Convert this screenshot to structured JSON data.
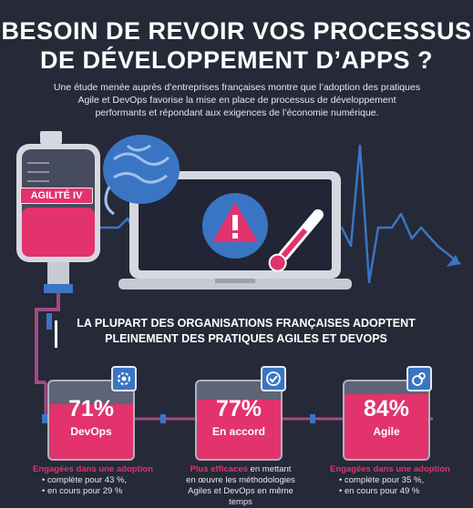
{
  "title_line1": "BESOIN DE REVOIR VOS PROCESSUS",
  "title_line2": "DE DÉVELOPPEMENT D’APPS ?",
  "intro_line1": "Une étude menée auprès d’entreprises françaises montre que l’adoption des pratiques",
  "intro_line2": "Agile et DevOps favorise la mise en place de processus de développement",
  "intro_line3": "performants et répondant aux exigences de l’économie numérique.",
  "iv_label": "AGILITÉ IV",
  "heading_line1": "LA PLUPART DES ORGANISATIONS FRANÇAISES ADOPTENT",
  "heading_line2": "PLEINEMENT DES PRATIQUES AGILES ET DEVOPS",
  "colors": {
    "background": "#262937",
    "accent_pink": "#e2336d",
    "accent_blue": "#3a75c4",
    "gray": "#5e6376"
  },
  "stats": [
    {
      "value": 71,
      "percent": "71%",
      "label": "DevOps",
      "icon": "gear-icon"
    },
    {
      "value": 77,
      "percent": "77%",
      "label": "En accord",
      "icon": "check-icon"
    },
    {
      "value": 84,
      "percent": "84%",
      "label": "Agile",
      "icon": "agile-icon"
    }
  ],
  "notes": {
    "left": {
      "highlight": "Engagées dans une adoption",
      "line1": "• complète pour 43 %,",
      "line2": "• en cours pour 29 %"
    },
    "middle": {
      "highlight": "Plus efficaces",
      "rest": " en mettant",
      "line1": "en œuvre les méthodologies",
      "line2": "Agiles et DevOps en même temps"
    },
    "right": {
      "highlight": "Engagées dans une adoption",
      "line1": "• complète pour 35 %,",
      "line2": "• en cours pour 49 %"
    }
  }
}
